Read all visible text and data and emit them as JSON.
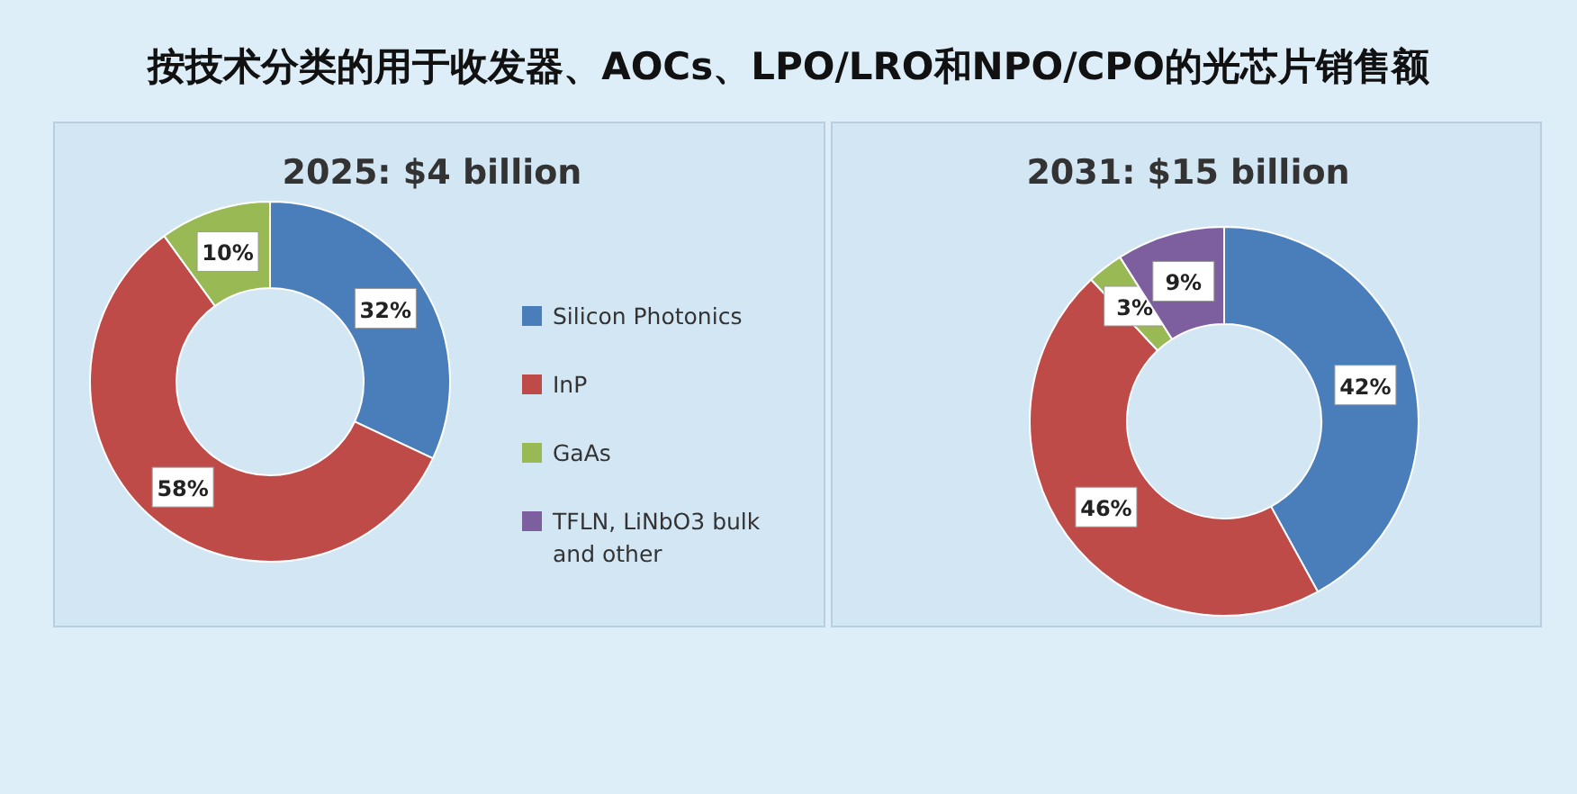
{
  "chart_data": [
    {
      "type": "donut",
      "title": "按技术分类的用于收发器、AOCs、LPO/LRO和NPO/CPO的光芯片销售额",
      "subtitle": "2025: $4 billion",
      "categories": [
        null,
        null,
        null
      ],
      "values": [
        32,
        58,
        10
      ],
      "value_labels": [
        "32%",
        "58%",
        "10%"
      ],
      "colors": [
        "#4a7ebb",
        "#be4b48",
        "#98b954"
      ]
    },
    {
      "type": "donut",
      "subtitle": "2031: $15 billion",
      "categories": [
        "Silicon Photonics",
        "InP",
        "GaAs",
        "TFLN, LiNbO3 bulk and other"
      ],
      "values": [
        42,
        46,
        3,
        9
      ],
      "value_labels": [
        "42%",
        "46%",
        "3%",
        "9%"
      ],
      "colors": [
        "#4a7ebb",
        "#be4b48",
        "#98b954",
        "#7d5fa0"
      ],
      "legend": "left"
    }
  ]
}
